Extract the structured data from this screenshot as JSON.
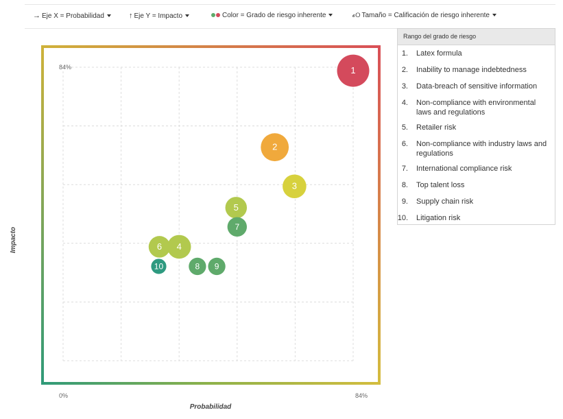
{
  "toolbar": {
    "x_axis": "Eje X = Probabilidad",
    "y_axis": "Eje Y = Impacto",
    "color": "Color = Grado de riesgo inherente",
    "size": "Tamaño = Calificación de riesgo inherente"
  },
  "legend": {
    "title": "Rango del grado de riesgo",
    "items": [
      {
        "num": "1.",
        "label": "Latex formula"
      },
      {
        "num": "2.",
        "label": "Inability to manage indebtedness"
      },
      {
        "num": "3.",
        "label": "Data-breach of sensitive information"
      },
      {
        "num": "4.",
        "label": "Non-compliance with environmental laws and regulations"
      },
      {
        "num": "5.",
        "label": "Retailer risk"
      },
      {
        "num": "6.",
        "label": "Non-compliance with industry laws and regulations"
      },
      {
        "num": "7.",
        "label": "International compliance risk"
      },
      {
        "num": "8.",
        "label": "Top talent loss"
      },
      {
        "num": "9.",
        "label": "Supply chain risk"
      },
      {
        "num": "10.",
        "label": "Litigation risk"
      }
    ]
  },
  "colors": {
    "red": "#d44a5c",
    "orange": "#f0a93c",
    "yellow": "#d7d13d",
    "yellow_green": "#b2c94e",
    "green": "#5faa6b",
    "teal": "#2e9a80",
    "gradient_top_right": "#d94f57",
    "gradient_top_left": "#cfb23a",
    "gradient_bottom_left": "#2f9a79",
    "gradient_bottom_right": "#d4bd3e"
  },
  "chart_data": {
    "type": "scatter",
    "xlabel": "Probabilidad",
    "ylabel": "Impacto",
    "x_tick_labels": [
      "0%",
      "84%"
    ],
    "y_tick_labels": [
      "84%"
    ],
    "xlim": [
      0,
      84
    ],
    "ylim": [
      0,
      84
    ],
    "grid": true,
    "legend_position": "right",
    "points": [
      {
        "id": "1",
        "x": 84,
        "y": 83,
        "size": 10,
        "color": "red"
      },
      {
        "id": "2",
        "x": 61.3,
        "y": 61.1,
        "size": 8,
        "color": "orange"
      },
      {
        "id": "3",
        "x": 67,
        "y": 49.9,
        "size": 6,
        "color": "yellow"
      },
      {
        "id": "4",
        "x": 33.6,
        "y": 32.6,
        "size": 6,
        "color": "yellow_green"
      },
      {
        "id": "5",
        "x": 50.1,
        "y": 43.8,
        "size": 5,
        "color": "yellow_green"
      },
      {
        "id": "6",
        "x": 27.9,
        "y": 32.6,
        "size": 5,
        "color": "yellow_green"
      },
      {
        "id": "7",
        "x": 50.4,
        "y": 38.3,
        "size": 4,
        "color": "green"
      },
      {
        "id": "8",
        "x": 38.9,
        "y": 27.0,
        "size": 3,
        "color": "green"
      },
      {
        "id": "9",
        "x": 44.5,
        "y": 27.0,
        "size": 3,
        "color": "green"
      },
      {
        "id": "10",
        "x": 27.7,
        "y": 27.0,
        "size": 2,
        "color": "teal"
      }
    ]
  }
}
